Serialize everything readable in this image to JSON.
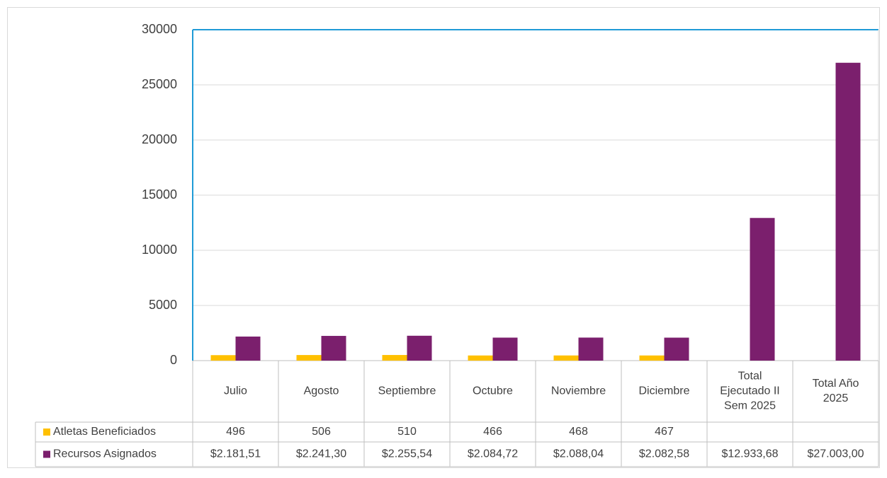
{
  "chart_data": {
    "type": "bar",
    "categories": [
      "Julio",
      "Agosto",
      "Septiembre",
      "Octubre",
      "Noviembre",
      "Diciembre",
      "Total Ejecutado II Sem 2025",
      "Total Año 2025"
    ],
    "series": [
      {
        "name": "Atletas Beneficiados",
        "color": "#ffc000",
        "values": [
          496,
          506,
          510,
          466,
          468,
          467,
          null,
          null
        ]
      },
      {
        "name": "Recursos Asignados",
        "color": "#7b1f6d",
        "values": [
          2181.51,
          2241.3,
          2255.54,
          2084.72,
          2088.04,
          2082.58,
          12933.68,
          27003.0
        ],
        "value_labels": [
          "$2.181,51",
          "$2.241,30",
          "$2.255,54",
          "$2.084,72",
          "$2.088,04",
          "$2.082,58",
          "$12.933,68",
          "$27.003,00"
        ]
      }
    ],
    "ylim": [
      0,
      30000
    ],
    "yticks": [
      0,
      5000,
      10000,
      15000,
      20000,
      25000,
      30000
    ],
    "grid": true
  }
}
